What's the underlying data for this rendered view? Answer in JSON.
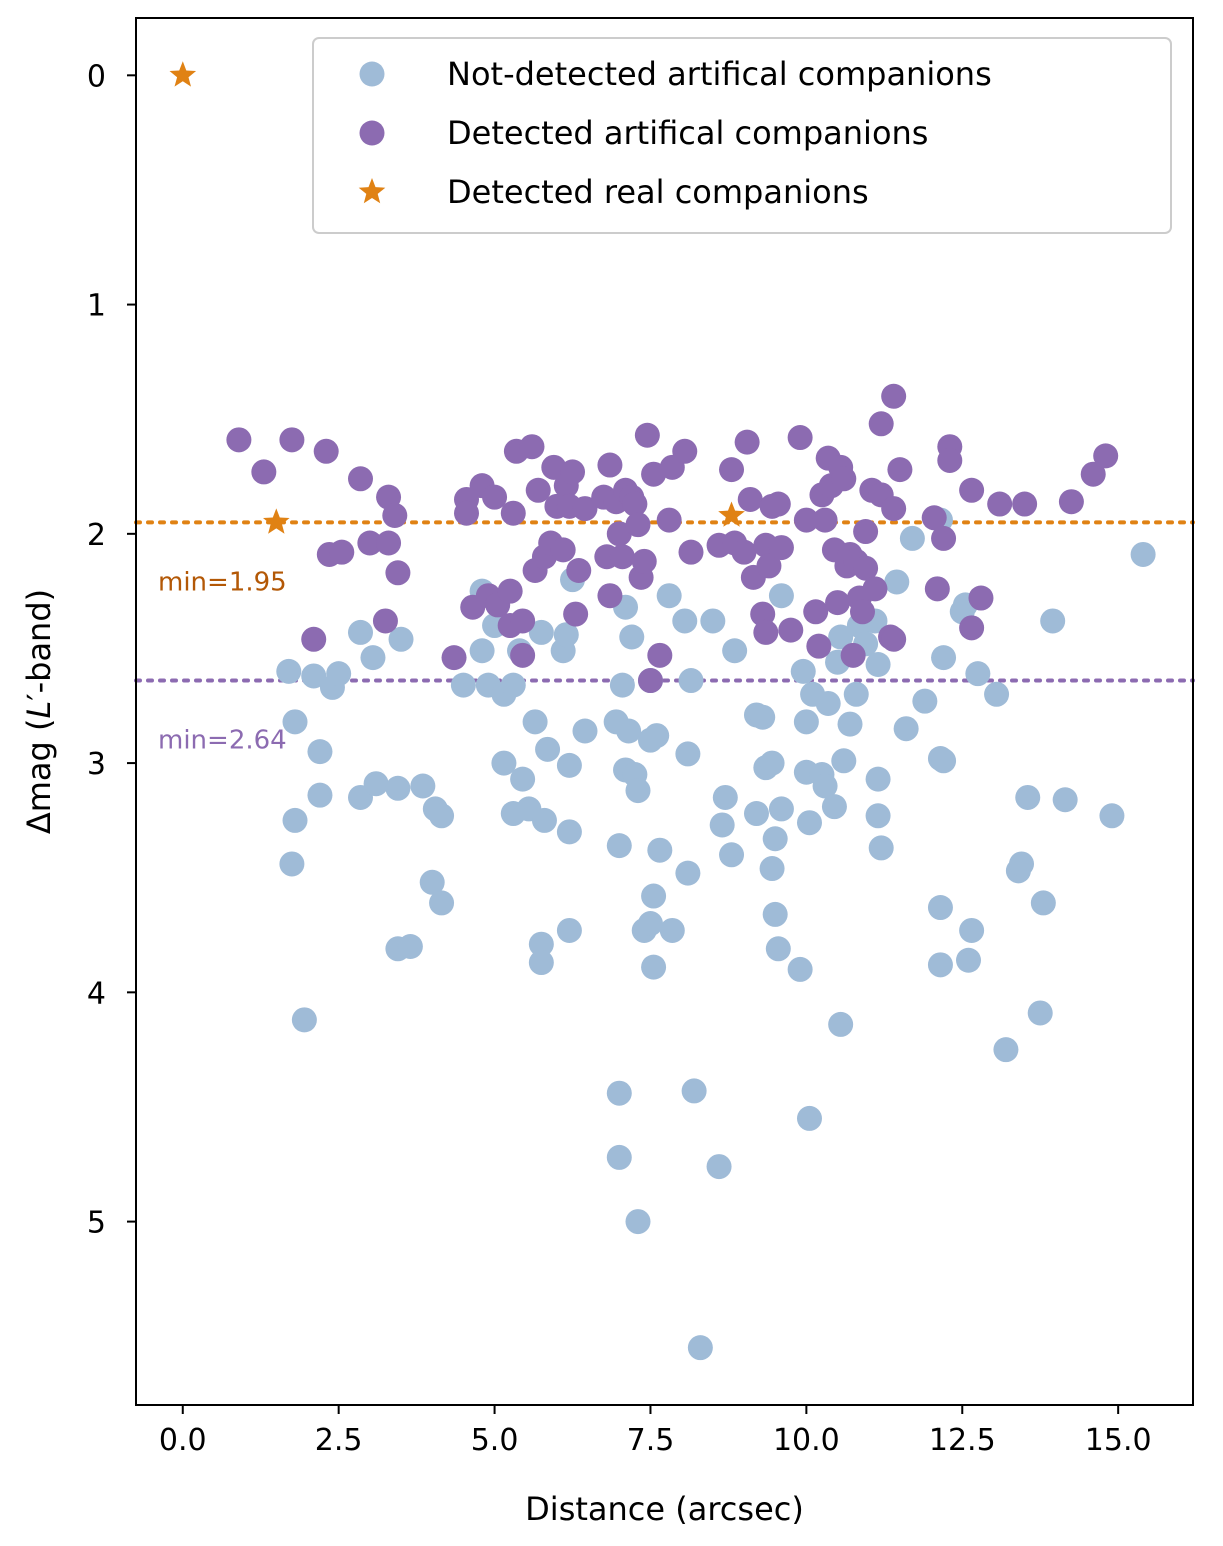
{
  "chart_data": {
    "type": "scatter",
    "xlabel": "Distance (arcsec)",
    "ylabel_prefix": "Δmag (",
    "ylabel_italic": "L",
    "ylabel_prime": "′",
    "ylabel_suffix": "-band)",
    "xlim": [
      -0.75,
      16.2
    ],
    "ylim": [
      5.8,
      -0.25
    ],
    "x_ticks": [
      0.0,
      2.5,
      5.0,
      7.5,
      10.0,
      12.5,
      15.0
    ],
    "x_tick_labels": [
      "0.0",
      "2.5",
      "5.0",
      "7.5",
      "10.0",
      "12.5",
      "15.0"
    ],
    "y_ticks": [
      0,
      1,
      2,
      3,
      4,
      5
    ],
    "y_tick_labels": [
      "0",
      "1",
      "2",
      "3",
      "4",
      "5"
    ],
    "legend_position": "top-right",
    "colors": {
      "not_detected": "#9fbbd7",
      "detected": "#8c6bb1",
      "real": "#e08214",
      "real_text": "#b35806",
      "detected_text": "#8c6bb1"
    },
    "reference_lines": [
      {
        "name": "real-min",
        "y": 1.95,
        "label": "min=1.95",
        "color": "#e08214",
        "text_color": "#b35806"
      },
      {
        "name": "detected-min",
        "y": 2.64,
        "label": "min=2.64",
        "color": "#8c6bb1",
        "text_color": "#8c6bb1"
      }
    ],
    "series": [
      {
        "name": "Not-detected artifical companions",
        "marker": "circle",
        "color": "#9fbbd7",
        "points": [
          [
            1.7,
            2.6
          ],
          [
            1.8,
            2.82
          ],
          [
            1.8,
            3.25
          ],
          [
            1.75,
            3.44
          ],
          [
            1.95,
            4.12
          ],
          [
            2.1,
            2.62
          ],
          [
            2.2,
            2.95
          ],
          [
            2.2,
            3.14
          ],
          [
            2.4,
            2.67
          ],
          [
            2.5,
            2.61
          ],
          [
            2.85,
            2.43
          ],
          [
            2.85,
            3.15
          ],
          [
            3.05,
            2.54
          ],
          [
            3.1,
            3.09
          ],
          [
            3.45,
            3.11
          ],
          [
            3.5,
            2.46
          ],
          [
            3.45,
            3.81
          ],
          [
            3.65,
            3.8
          ],
          [
            3.85,
            3.1
          ],
          [
            4.05,
            3.2
          ],
          [
            4.15,
            3.23
          ],
          [
            4.0,
            3.52
          ],
          [
            4.15,
            3.61
          ],
          [
            4.5,
            2.66
          ],
          [
            4.8,
            2.25
          ],
          [
            4.8,
            2.51
          ],
          [
            4.9,
            2.66
          ],
          [
            5.0,
            2.4
          ],
          [
            5.15,
            2.7
          ],
          [
            5.3,
            2.66
          ],
          [
            5.15,
            3.0
          ],
          [
            5.4,
            2.51
          ],
          [
            5.45,
            3.07
          ],
          [
            5.3,
            3.22
          ],
          [
            5.55,
            3.2
          ],
          [
            5.65,
            2.82
          ],
          [
            5.75,
            2.43
          ],
          [
            5.8,
            3.25
          ],
          [
            5.85,
            2.94
          ],
          [
            5.75,
            3.79
          ],
          [
            5.75,
            3.87
          ],
          [
            6.1,
            2.51
          ],
          [
            6.15,
            2.44
          ],
          [
            6.2,
            3.01
          ],
          [
            6.2,
            3.3
          ],
          [
            6.2,
            3.73
          ],
          [
            6.25,
            2.2
          ],
          [
            6.45,
            2.86
          ],
          [
            6.95,
            2.82
          ],
          [
            7.0,
            3.36
          ],
          [
            7.05,
            2.66
          ],
          [
            7.1,
            2.32
          ],
          [
            7.2,
            2.45
          ],
          [
            7.1,
            3.03
          ],
          [
            7.15,
            2.86
          ],
          [
            7.25,
            3.05
          ],
          [
            7.3,
            3.12
          ],
          [
            7.4,
            3.73
          ],
          [
            7.5,
            2.64
          ],
          [
            7.5,
            2.9
          ],
          [
            7.55,
            3.58
          ],
          [
            7.5,
            3.7
          ],
          [
            7.55,
            3.89
          ],
          [
            7.6,
            2.88
          ],
          [
            7.65,
            3.38
          ],
          [
            7.8,
            2.27
          ],
          [
            7.85,
            3.73
          ],
          [
            8.05,
            2.38
          ],
          [
            8.15,
            2.64
          ],
          [
            8.1,
            2.96
          ],
          [
            8.1,
            3.48
          ],
          [
            8.3,
            5.55
          ],
          [
            8.5,
            2.38
          ],
          [
            8.65,
            3.27
          ],
          [
            8.7,
            3.15
          ],
          [
            8.8,
            3.4
          ],
          [
            8.85,
            2.51
          ],
          [
            9.2,
            2.79
          ],
          [
            9.2,
            3.22
          ],
          [
            9.3,
            2.8
          ],
          [
            9.35,
            3.02
          ],
          [
            9.45,
            3.0
          ],
          [
            9.45,
            3.46
          ],
          [
            9.5,
            3.66
          ],
          [
            9.5,
            3.33
          ],
          [
            9.55,
            3.81
          ],
          [
            9.6,
            3.2
          ],
          [
            9.6,
            2.27
          ],
          [
            9.9,
            3.9
          ],
          [
            9.95,
            2.6
          ],
          [
            10.0,
            2.82
          ],
          [
            10.0,
            3.04
          ],
          [
            10.05,
            3.26
          ],
          [
            10.1,
            2.7
          ],
          [
            10.25,
            3.05
          ],
          [
            10.3,
            3.1
          ],
          [
            10.35,
            2.74
          ],
          [
            10.45,
            3.19
          ],
          [
            10.5,
            2.56
          ],
          [
            10.55,
            2.45
          ],
          [
            10.6,
            2.99
          ],
          [
            10.7,
            2.83
          ],
          [
            10.8,
            2.7
          ],
          [
            10.85,
            2.4
          ],
          [
            10.95,
            2.48
          ],
          [
            11.1,
            2.38
          ],
          [
            11.15,
            2.57
          ],
          [
            11.15,
            3.07
          ],
          [
            11.15,
            3.23
          ],
          [
            11.2,
            3.37
          ],
          [
            11.45,
            2.21
          ],
          [
            11.6,
            2.85
          ],
          [
            11.7,
            2.02
          ],
          [
            11.9,
            2.73
          ],
          [
            12.15,
            1.94
          ],
          [
            12.15,
            2.98
          ],
          [
            12.2,
            2.99
          ],
          [
            12.2,
            2.54
          ],
          [
            12.5,
            2.34
          ],
          [
            12.55,
            2.31
          ],
          [
            12.75,
            2.61
          ],
          [
            13.05,
            2.7
          ],
          [
            13.4,
            3.47
          ],
          [
            13.45,
            3.44
          ],
          [
            13.55,
            3.15
          ],
          [
            13.8,
            3.61
          ],
          [
            13.95,
            2.38
          ],
          [
            14.15,
            3.16
          ],
          [
            14.9,
            3.23
          ],
          [
            15.4,
            2.09
          ],
          [
            12.15,
            3.63
          ],
          [
            12.15,
            3.88
          ],
          [
            12.6,
            3.86
          ],
          [
            12.65,
            3.73
          ],
          [
            13.2,
            4.25
          ],
          [
            13.75,
            4.09
          ],
          [
            10.55,
            4.14
          ],
          [
            10.05,
            4.55
          ],
          [
            8.2,
            4.43
          ],
          [
            7.0,
            4.44
          ],
          [
            7.0,
            4.72
          ],
          [
            8.6,
            4.76
          ],
          [
            7.3,
            5.0
          ]
        ]
      },
      {
        "name": "Detected artifical companions",
        "marker": "circle",
        "color": "#8c6bb1",
        "points": [
          [
            0.9,
            1.59
          ],
          [
            1.3,
            1.73
          ],
          [
            1.75,
            1.59
          ],
          [
            2.1,
            2.46
          ],
          [
            2.3,
            1.64
          ],
          [
            2.35,
            2.09
          ],
          [
            2.55,
            2.08
          ],
          [
            2.85,
            1.76
          ],
          [
            3.0,
            2.04
          ],
          [
            3.25,
            2.38
          ],
          [
            3.3,
            1.84
          ],
          [
            3.3,
            2.04
          ],
          [
            3.4,
            1.92
          ],
          [
            3.45,
            2.17
          ],
          [
            4.35,
            2.54
          ],
          [
            4.55,
            1.85
          ],
          [
            4.55,
            1.91
          ],
          [
            4.65,
            2.32
          ],
          [
            4.8,
            1.79
          ],
          [
            4.9,
            2.27
          ],
          [
            5.05,
            2.31
          ],
          [
            5.0,
            1.84
          ],
          [
            5.25,
            2.25
          ],
          [
            5.25,
            2.4
          ],
          [
            5.3,
            1.91
          ],
          [
            5.35,
            1.64
          ],
          [
            5.45,
            2.38
          ],
          [
            5.45,
            2.53
          ],
          [
            5.6,
            1.62
          ],
          [
            5.65,
            2.16
          ],
          [
            5.7,
            1.81
          ],
          [
            5.8,
            2.1
          ],
          [
            5.9,
            2.04
          ],
          [
            5.95,
            1.71
          ],
          [
            6.0,
            1.88
          ],
          [
            6.1,
            2.07
          ],
          [
            6.15,
            1.79
          ],
          [
            6.2,
            1.88
          ],
          [
            6.25,
            1.73
          ],
          [
            6.3,
            2.35
          ],
          [
            6.35,
            2.16
          ],
          [
            6.45,
            1.89
          ],
          [
            6.75,
            1.84
          ],
          [
            6.8,
            2.1
          ],
          [
            6.85,
            1.7
          ],
          [
            6.85,
            2.27
          ],
          [
            6.95,
            1.86
          ],
          [
            7.0,
            2.0
          ],
          [
            7.05,
            2.1
          ],
          [
            7.1,
            1.81
          ],
          [
            7.2,
            1.84
          ],
          [
            7.25,
            1.87
          ],
          [
            7.3,
            1.96
          ],
          [
            7.35,
            2.19
          ],
          [
            7.4,
            2.12
          ],
          [
            7.45,
            1.57
          ],
          [
            7.5,
            2.64
          ],
          [
            7.55,
            1.74
          ],
          [
            7.65,
            2.53
          ],
          [
            7.8,
            1.94
          ],
          [
            7.85,
            1.71
          ],
          [
            8.05,
            1.64
          ],
          [
            8.15,
            2.08
          ],
          [
            8.6,
            2.05
          ],
          [
            8.8,
            1.72
          ],
          [
            8.85,
            2.04
          ],
          [
            9.0,
            2.08
          ],
          [
            9.05,
            1.6
          ],
          [
            9.1,
            1.85
          ],
          [
            9.15,
            2.19
          ],
          [
            9.3,
            2.35
          ],
          [
            9.35,
            2.43
          ],
          [
            9.35,
            2.05
          ],
          [
            9.4,
            2.14
          ],
          [
            9.45,
            1.88
          ],
          [
            9.55,
            1.87
          ],
          [
            9.6,
            2.06
          ],
          [
            9.75,
            2.42
          ],
          [
            9.9,
            1.58
          ],
          [
            10.0,
            1.94
          ],
          [
            10.15,
            2.34
          ],
          [
            10.2,
            2.49
          ],
          [
            10.25,
            1.83
          ],
          [
            10.3,
            1.94
          ],
          [
            10.35,
            1.67
          ],
          [
            10.4,
            1.79
          ],
          [
            10.45,
            2.07
          ],
          [
            10.5,
            2.3
          ],
          [
            10.55,
            1.71
          ],
          [
            10.6,
            1.76
          ],
          [
            10.65,
            2.14
          ],
          [
            10.7,
            2.09
          ],
          [
            10.75,
            2.53
          ],
          [
            10.8,
            2.12
          ],
          [
            10.85,
            2.28
          ],
          [
            10.9,
            2.34
          ],
          [
            10.95,
            2.15
          ],
          [
            10.95,
            1.99
          ],
          [
            11.05,
            1.81
          ],
          [
            11.1,
            2.24
          ],
          [
            11.2,
            1.83
          ],
          [
            11.2,
            1.52
          ],
          [
            11.35,
            2.45
          ],
          [
            11.4,
            1.4
          ],
          [
            11.4,
            2.46
          ],
          [
            11.5,
            1.72
          ],
          [
            12.05,
            1.93
          ],
          [
            12.1,
            2.24
          ],
          [
            12.2,
            2.02
          ],
          [
            12.3,
            1.62
          ],
          [
            12.3,
            1.68
          ],
          [
            12.65,
            1.81
          ],
          [
            12.65,
            2.41
          ],
          [
            12.8,
            2.28
          ],
          [
            13.1,
            1.87
          ],
          [
            13.5,
            1.87
          ],
          [
            14.25,
            1.86
          ],
          [
            14.6,
            1.74
          ],
          [
            14.8,
            1.66
          ],
          [
            11.4,
            1.89
          ]
        ]
      },
      {
        "name": "Detected real companions",
        "marker": "star",
        "color": "#e08214",
        "points": [
          [
            0.0,
            0.0
          ],
          [
            1.5,
            1.95
          ],
          [
            8.8,
            1.92
          ]
        ]
      }
    ]
  }
}
